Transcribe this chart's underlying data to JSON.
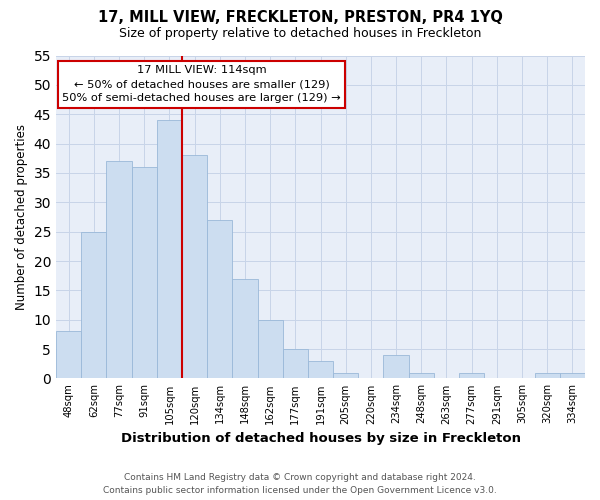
{
  "title": "17, MILL VIEW, FRECKLETON, PRESTON, PR4 1YQ",
  "subtitle": "Size of property relative to detached houses in Freckleton",
  "xlabel": "Distribution of detached houses by size in Freckleton",
  "ylabel": "Number of detached properties",
  "bin_labels": [
    "48sqm",
    "62sqm",
    "77sqm",
    "91sqm",
    "105sqm",
    "120sqm",
    "134sqm",
    "148sqm",
    "162sqm",
    "177sqm",
    "191sqm",
    "205sqm",
    "220sqm",
    "234sqm",
    "248sqm",
    "263sqm",
    "277sqm",
    "291sqm",
    "305sqm",
    "320sqm",
    "334sqm"
  ],
  "bar_heights": [
    8,
    25,
    37,
    36,
    44,
    38,
    27,
    17,
    10,
    5,
    3,
    1,
    0,
    4,
    1,
    0,
    1,
    0,
    0,
    1,
    1
  ],
  "bar_color": "#ccddf0",
  "bar_edge_color": "#9ab8d8",
  "vline_color": "#cc0000",
  "annotation_title": "17 MILL VIEW: 114sqm",
  "annotation_line1": "← 50% of detached houses are smaller (129)",
  "annotation_line2": "50% of semi-detached houses are larger (129) →",
  "annotation_box_color": "#ffffff",
  "annotation_box_edge": "#cc0000",
  "ylim": [
    0,
    55
  ],
  "yticks": [
    0,
    5,
    10,
    15,
    20,
    25,
    30,
    35,
    40,
    45,
    50,
    55
  ],
  "footer_line1": "Contains HM Land Registry data © Crown copyright and database right 2024.",
  "footer_line2": "Contains public sector information licensed under the Open Government Licence v3.0.",
  "bg_color": "#ffffff",
  "plot_bg_color": "#e8eef8",
  "grid_color": "#c8d4e8"
}
